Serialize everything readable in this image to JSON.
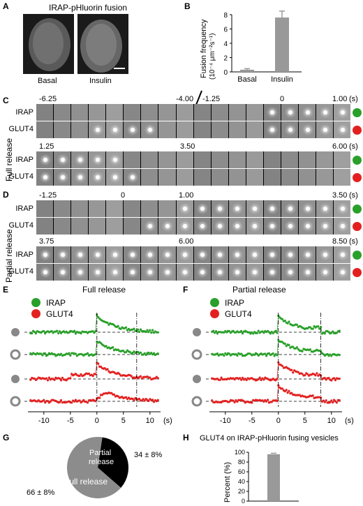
{
  "panels": {
    "A": {
      "label": "A",
      "title": "IRAP-pHluorin fusion",
      "left_caption": "Basal",
      "right_caption": "Insulin"
    },
    "B": {
      "label": "B",
      "ylabel_line1": "Fusion frequency",
      "ylabel_line2": "(10⁻⁴ μm⁻²s⁻¹)"
    },
    "C": {
      "label": "C",
      "side_label": "Full release",
      "row1_irap": "IRAP",
      "row1_glut4": "GLUT4",
      "row2_irap": "IRAP",
      "row2_glut4": "GLUT4",
      "times_top": [
        "-6.25",
        "-4.00",
        "-1.25",
        "0",
        "1.00"
      ],
      "times_bottom": [
        "1.25",
        "3.50",
        "6.00"
      ],
      "unit": "(s)"
    },
    "D": {
      "label": "D",
      "side_label": "Partial release",
      "row1_irap": "IRAP",
      "row1_glut4": "GLUT4",
      "row2_irap": "IRAP",
      "row2_glut4": "GLUT4",
      "times_top": [
        "-1.25",
        "0",
        "1.00",
        "3.50"
      ],
      "times_bottom": [
        "3.75",
        "6.00",
        "8.50"
      ],
      "unit": "(s)"
    },
    "E": {
      "label": "E",
      "title": "Full release",
      "legend_irap": "IRAP",
      "legend_glut4": "GLUT4"
    },
    "F": {
      "label": "F",
      "title": "Partial release",
      "legend_irap": "IRAP",
      "legend_glut4": "GLUT4"
    },
    "G": {
      "label": "G",
      "slice_partial_label1": "Partial",
      "slice_partial_label2": "release",
      "slice_partial_value": "34 ± 8%",
      "slice_full_label": "Full release",
      "slice_full_value": "66 ± 8%"
    },
    "H": {
      "label": "H",
      "title": "GLUT4 on IRAP-pHluorin fusing vesicles",
      "ylabel": "Percent (%)"
    }
  },
  "colors": {
    "irap": "#2aa02a",
    "glut4": "#e32020",
    "bar": "#999999",
    "full": "#8c8c8c",
    "partial": "#000000"
  },
  "chart_data": [
    {
      "type": "bar",
      "panel": "B",
      "categories": [
        "Basal",
        "Insulin"
      ],
      "values": [
        0.3,
        7.6
      ],
      "errors": [
        0.15,
        0.9
      ],
      "ylabel": "Fusion frequency (10⁻⁴ μm⁻²s⁻¹)",
      "ylim": [
        0,
        8
      ],
      "yticks": [
        0,
        2,
        4,
        6,
        8
      ]
    },
    {
      "type": "line",
      "panel": "E",
      "title": "Full release",
      "xlim": [
        -13,
        12
      ],
      "xticks": [
        -10,
        -5,
        0,
        5,
        10
      ],
      "xunit": "(s)",
      "markers": [
        0,
        7.5
      ],
      "series": [
        {
          "name": "IRAP"
        },
        {
          "name": "IRAP"
        },
        {
          "name": "GLUT4"
        },
        {
          "name": "GLUT4"
        }
      ]
    },
    {
      "type": "line",
      "panel": "F",
      "title": "Partial release",
      "xlim": [
        -13,
        12
      ],
      "xticks": [
        -10,
        -5,
        0,
        5,
        10
      ],
      "xunit": "(s)",
      "markers": [
        0,
        8
      ],
      "series": [
        {
          "name": "IRAP"
        },
        {
          "name": "IRAP"
        },
        {
          "name": "GLUT4"
        },
        {
          "name": "GLUT4"
        }
      ]
    },
    {
      "type": "pie",
      "panel": "G",
      "categories": [
        "Partial release",
        "Full release"
      ],
      "values": [
        34,
        66
      ]
    },
    {
      "type": "bar",
      "panel": "H",
      "title": "GLUT4 on IRAP-pHluorin fusing vesicles",
      "categories": [
        ""
      ],
      "values": [
        96
      ],
      "errors": [
        2
      ],
      "ylabel": "Percent (%)",
      "ylim": [
        0,
        100
      ],
      "yticks": [
        0,
        20,
        40,
        60,
        80,
        100
      ]
    }
  ]
}
